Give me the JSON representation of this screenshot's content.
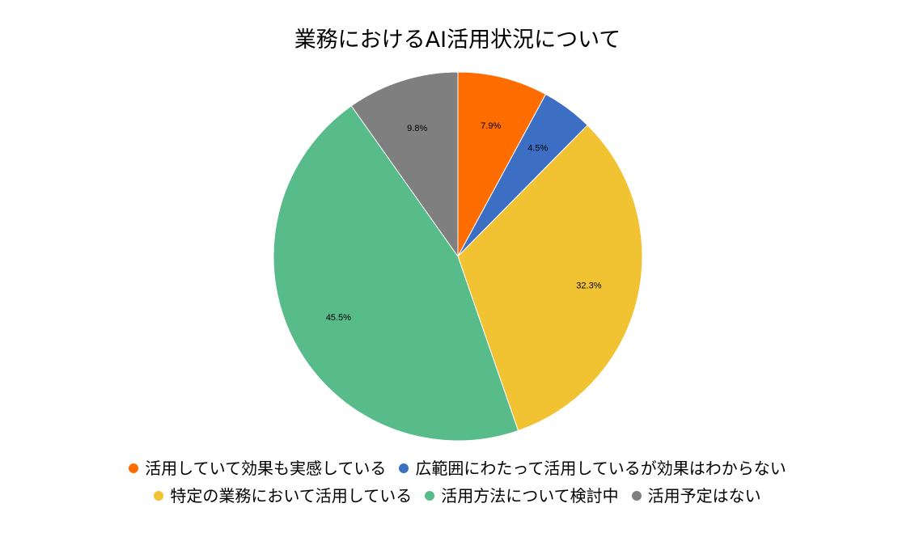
{
  "chart_data": {
    "type": "pie",
    "title": "業務におけるAI活用状況について",
    "categories": [
      "活用していて効果も実感している",
      "広範囲にわたって活用しているが効果はわからない",
      "特定の業務において活用している",
      "活用方法について検討中",
      "活用予定はない"
    ],
    "values": [
      7.9,
      4.5,
      32.3,
      45.5,
      9.8
    ],
    "labels": [
      "7.9%",
      "4.5%",
      "32.3%",
      "45.5%",
      "9.8%"
    ],
    "colors": [
      "#ff6d01",
      "#3c6ec4",
      "#f1c232",
      "#57bb8a",
      "#7f7f7f"
    ],
    "legend_position": "bottom"
  }
}
